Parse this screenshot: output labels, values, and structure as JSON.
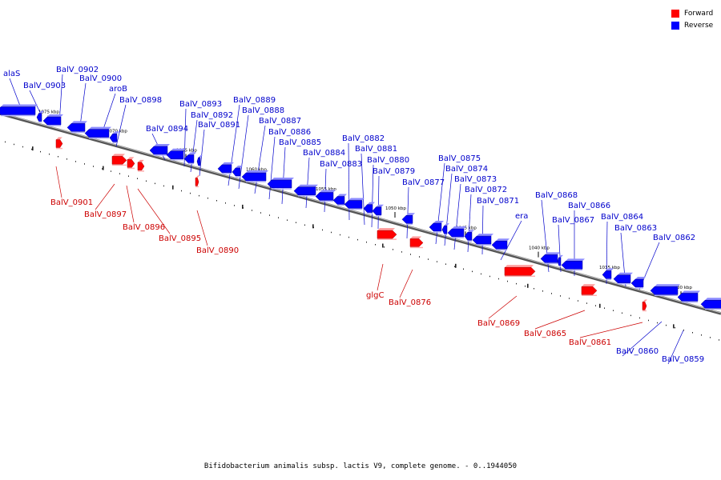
{
  "caption": "Bifidobacterium animalis subsp. lactis V9, complete genome. - 0..1944050",
  "legend": [
    {
      "label": "Forward",
      "color": "#ff0000"
    },
    {
      "label": "Reverse",
      "color": "#0000ff"
    }
  ],
  "colors": {
    "forward_label": "#cc0000",
    "reverse_label": "#0000cc",
    "backbone": "#888888"
  },
  "scale_ticks": [
    "1075 kbp",
    "1070 kbp",
    "1065 kbp",
    "1060 kbp",
    "1055 kbp",
    "1050 kbp",
    "1045 kbp",
    "1040 kbp",
    "1035 kbp",
    "1030 kbp"
  ],
  "reverse_genes": [
    "alaS",
    "BalV_0903",
    "BalV_0902",
    "BalV_0900",
    "aroB",
    "BalV_0898",
    "BalV_0894",
    "BalV_0893",
    "BalV_0892",
    "BalV_0891",
    "BalV_0889",
    "BalV_0888",
    "BalV_0887",
    "BalV_0886",
    "BalV_0885",
    "BalV_0884",
    "BalV_0883",
    "BalV_0882",
    "BalV_0881",
    "BalV_0880",
    "BalV_0879",
    "BalV_0877",
    "BalV_0875",
    "BalV_0874",
    "BalV_0873",
    "BalV_0872",
    "BalV_0871",
    "era",
    "BalV_0868",
    "BalV_0867",
    "BalV_0866",
    "BalV_0864",
    "BalV_0863",
    "BalV_0862",
    "BalV_0860",
    "BalV_0859"
  ],
  "forward_genes": [
    "BalV_0901",
    "BalV_0897",
    "BalV_0896",
    "BalV_0895",
    "BalV_0890",
    "glgC",
    "BalV_0876",
    "BalV_0869",
    "BalV_0865",
    "BalV_0861"
  ]
}
